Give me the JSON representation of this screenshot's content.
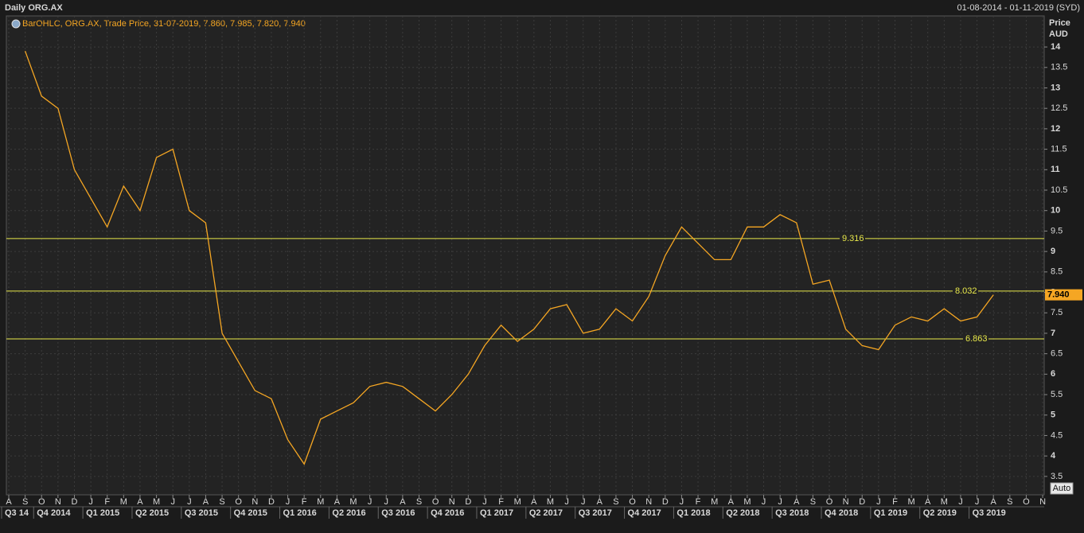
{
  "chart_data": {
    "type": "line",
    "title": "Daily ORG.AX",
    "date_range": "01-08-2014 - 01-11-2019 (SYD)",
    "legend_text": "BarOHLC, ORG.AX, Trade Price, 31-07-2019, 7.860, 7.985, 7.820, 7.940",
    "y_label": "Price",
    "y_unit": "AUD",
    "auto_button": "Auto",
    "months": [
      "A",
      "S",
      "O",
      "N",
      "D",
      "J",
      "F",
      "M",
      "A",
      "M",
      "J",
      "J",
      "A",
      "S",
      "O",
      "N",
      "D",
      "J",
      "F",
      "M",
      "A",
      "M",
      "J",
      "J",
      "A",
      "S",
      "O",
      "N",
      "D",
      "J",
      "F",
      "M",
      "A",
      "M",
      "J",
      "J",
      "A",
      "S",
      "O",
      "N",
      "D",
      "J",
      "F",
      "M",
      "A",
      "M",
      "J",
      "J",
      "A",
      "S",
      "O",
      "N",
      "D",
      "J",
      "F",
      "M",
      "A",
      "M",
      "J",
      "J",
      "A",
      "S",
      "O",
      "N"
    ],
    "quarters": [
      "Q3 14",
      "Q4 2014",
      "Q1 2015",
      "Q2 2015",
      "Q3 2015",
      "Q4 2015",
      "Q1 2016",
      "Q2 2016",
      "Q3 2016",
      "Q4 2016",
      "Q1 2017",
      "Q2 2017",
      "Q3 2017",
      "Q4 2017",
      "Q1 2018",
      "Q2 2018",
      "Q3 2018",
      "Q4 2018",
      "Q1 2019",
      "Q2 2019",
      "Q3 2019"
    ],
    "series": [
      {
        "name": "ORG.AX",
        "color": "#f5a623",
        "x": [
          "2014-08",
          "2014-09",
          "2014-10",
          "2014-11",
          "2014-12",
          "2015-01",
          "2015-02",
          "2015-03",
          "2015-04",
          "2015-05",
          "2015-06",
          "2015-07",
          "2015-08",
          "2015-09",
          "2015-10",
          "2015-11",
          "2015-12",
          "2016-01",
          "2016-02",
          "2016-03",
          "2016-04",
          "2016-05",
          "2016-06",
          "2016-07",
          "2016-08",
          "2016-09",
          "2016-10",
          "2016-11",
          "2016-12",
          "2017-01",
          "2017-02",
          "2017-03",
          "2017-04",
          "2017-05",
          "2017-06",
          "2017-07",
          "2017-08",
          "2017-09",
          "2017-10",
          "2017-11",
          "2017-12",
          "2018-01",
          "2018-02",
          "2018-03",
          "2018-04",
          "2018-05",
          "2018-06",
          "2018-07",
          "2018-08",
          "2018-09",
          "2018-10",
          "2018-11",
          "2018-12",
          "2019-01",
          "2019-02",
          "2019-03",
          "2019-04",
          "2019-05",
          "2019-06",
          "2019-07"
        ],
        "values": [
          13.9,
          12.8,
          12.5,
          11.0,
          10.3,
          9.6,
          10.6,
          10.0,
          11.3,
          11.5,
          10.0,
          9.7,
          7.0,
          6.3,
          5.6,
          5.4,
          4.4,
          3.8,
          4.9,
          5.1,
          5.3,
          5.7,
          5.8,
          5.7,
          5.4,
          5.1,
          5.5,
          6.0,
          6.7,
          7.2,
          6.8,
          7.1,
          7.6,
          7.7,
          7.0,
          7.1,
          7.6,
          7.3,
          7.9,
          8.9,
          9.6,
          9.2,
          8.8,
          8.8,
          9.6,
          9.6,
          9.9,
          9.7,
          8.2,
          8.3,
          7.1,
          6.7,
          6.6,
          7.2,
          7.4,
          7.3,
          7.6,
          7.3,
          7.4,
          7.94
        ]
      }
    ],
    "last_price": {
      "value": 7.94,
      "label": "7.940"
    },
    "hlines": [
      9.316,
      8.032,
      6.863
    ],
    "hline_color": "#e8e84a",
    "ylim": [
      3.05,
      14.76
    ],
    "yticks": [
      3.5,
      4,
      4.5,
      5,
      5.5,
      6,
      6.5,
      7,
      7.5,
      8,
      8.5,
      9,
      9.5,
      10,
      10.5,
      11,
      11.5,
      12,
      12.5,
      13,
      13.5,
      14
    ],
    "grid": true
  }
}
